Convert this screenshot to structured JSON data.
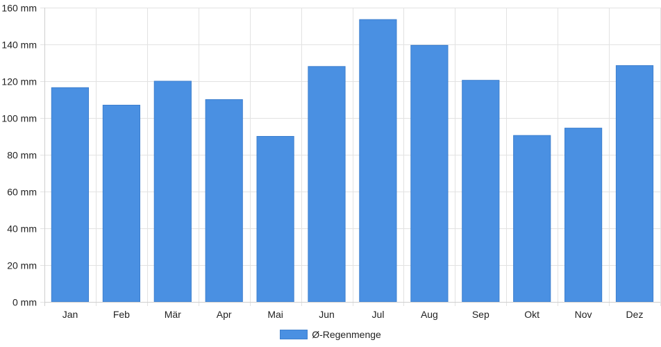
{
  "chart_data": {
    "type": "bar",
    "categories": [
      "Jan",
      "Feb",
      "Mär",
      "Apr",
      "Mai",
      "Jun",
      "Jul",
      "Aug",
      "Sep",
      "Okt",
      "Nov",
      "Dez"
    ],
    "series": [
      {
        "name": "Ø-Regenmenge",
        "values": [
          116.5,
          107,
          120,
          110,
          90,
          128,
          153.5,
          139.5,
          120.5,
          90.5,
          94.5,
          128.5
        ]
      }
    ],
    "ylim": [
      0,
      160
    ],
    "yticks": [
      0,
      20,
      40,
      60,
      80,
      100,
      120,
      140,
      160
    ],
    "ytick_labels": [
      "0 mm",
      "20 mm",
      "40 mm",
      "60 mm",
      "80 mm",
      "100 mm",
      "120 mm",
      "140 mm",
      "160 mm"
    ],
    "grid": true,
    "legend": "bottom-center",
    "bar_color": "#4a90e2",
    "grid_color": "#e2e2e2"
  }
}
